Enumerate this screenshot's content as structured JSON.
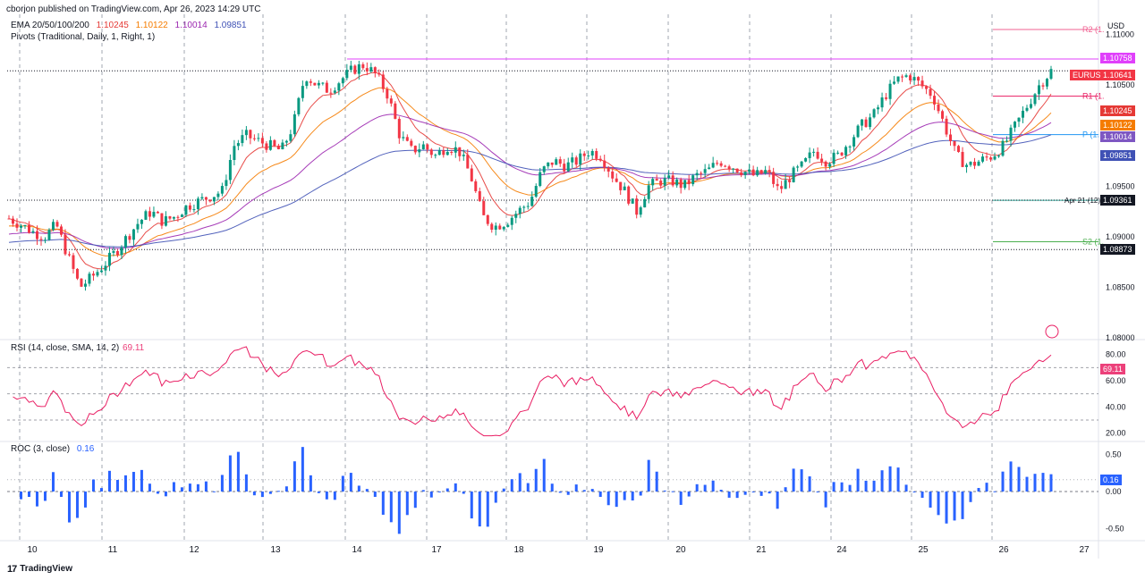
{
  "header": {
    "publisher": "cborjon published on TradingView.com, Apr 26, 2023 14:29 UTC"
  },
  "legend": {
    "ema": {
      "name": "EMA 20/50/100/200",
      "values": [
        "1.10245",
        "1.10122",
        "1.10014",
        "1.09851"
      ],
      "colors": [
        "#e53935",
        "#f57c00",
        "#9c27b0",
        "#3f51b5"
      ]
    },
    "pivots": {
      "name": "Pivots (Traditional, Daily, 1, Right, 1)"
    },
    "rsi": {
      "name": "RSI (14, close, SMA, 14, 2)",
      "value": "69.11",
      "color": "#ec407a"
    },
    "roc": {
      "name": "ROC (3, close)",
      "value": "0.16",
      "color": "#2962ff"
    }
  },
  "axis": {
    "currency": "USD",
    "price_ticks": [
      "1.11000",
      "1.10500",
      "1.10000",
      "1.09500",
      "1.09000",
      "1.08500",
      "1.08000"
    ],
    "price_tick_values": [
      1.11,
      1.105,
      1.1,
      1.095,
      1.09,
      1.085,
      1.08
    ],
    "rsi_ticks": [
      "80.00",
      "60.00",
      "40.00",
      "20.00"
    ],
    "rsi_tick_values": [
      80,
      60,
      40,
      20
    ],
    "roc_ticks": [
      "0.50",
      "0.00",
      "-0.50"
    ],
    "roc_tick_values": [
      0.5,
      0.0,
      -0.5
    ],
    "date_ticks": [
      "10",
      "11",
      "12",
      "13",
      "14",
      "17",
      "18",
      "19",
      "20",
      "21",
      "24",
      "25",
      "26",
      "27"
    ]
  },
  "pivots": {
    "R2": {
      "label": "R2 (1.",
      "price": 1.1105
    },
    "R1": {
      "label": "R1 (1.",
      "price": 1.1039
    },
    "P": {
      "label": "P (1.",
      "price": 1.1001
    },
    "S2": {
      "label": "S2 (1.",
      "price": 1.0895
    },
    "apr21": {
      "label": "Apr 21 (12)",
      "price": 1.0936
    }
  },
  "price_badges": [
    {
      "label": "1.10758",
      "price": 1.10758,
      "color": "#e040fb"
    },
    {
      "label": "EURUSD",
      "price": 1.10641,
      "color": "#f23645"
    },
    {
      "label": "1.10641",
      "price": 1.10641,
      "color": "#f23645"
    },
    {
      "label": "1.10245",
      "price": 1.10245,
      "color": "#e53935"
    },
    {
      "label": "1.10122",
      "price": 1.10122,
      "color": "#f57c00"
    },
    {
      "label": "1.10014",
      "price": 1.10014,
      "color": "#7e57c2"
    },
    {
      "label": "1.09851",
      "price": 1.09851,
      "color": "#3f51b5"
    },
    {
      "label": "1.09361",
      "price": 1.09361,
      "color": "#131722"
    },
    {
      "label": "1.08873",
      "price": 1.08873,
      "color": "#131722"
    }
  ],
  "rsi_badge": {
    "label": "69.11",
    "value": 69.11,
    "color": "#ec407a"
  },
  "roc_badge": {
    "label": "0.16",
    "value": 0.16,
    "color": "#2962ff"
  },
  "chart_data": {
    "type": "candlestick",
    "symbol": "EURUSD",
    "timeframe_note": "Apr 10 – Apr 26, 2023",
    "x_dates": [
      "10",
      "11",
      "12",
      "13",
      "14",
      "17",
      "18",
      "19",
      "20",
      "21",
      "24",
      "25",
      "26",
      "27"
    ],
    "price_ylim": [
      1.08,
      1.112
    ],
    "close_path": [
      1.0918,
      1.0912,
      1.0905,
      1.09,
      1.0912,
      1.088,
      1.085,
      1.086,
      1.0872,
      1.0885,
      1.09,
      1.0915,
      1.0925,
      1.0915,
      1.092,
      1.093,
      1.0935,
      1.094,
      1.0945,
      1.099,
      1.1,
      1.0995,
      1.099,
      1.0985,
      1.101,
      1.106,
      1.105,
      1.1045,
      1.1055,
      1.1065,
      1.107,
      1.106,
      1.104,
      1.1,
      1.0985,
      1.099,
      1.098,
      1.099,
      1.0985,
      1.096,
      1.092,
      1.091,
      1.0915,
      1.0925,
      1.0935,
      1.0965,
      1.0975,
      1.097,
      1.0975,
      1.0985,
      1.098,
      1.096,
      1.0945,
      1.0925,
      1.095,
      1.0955,
      1.0955,
      1.095,
      1.096,
      1.0965,
      1.0975,
      1.097,
      1.0965,
      1.096,
      1.0965,
      1.0945,
      1.096,
      1.097,
      1.0985,
      1.0975,
      1.098,
      1.0995,
      1.101,
      1.102,
      1.104,
      1.1055,
      1.106,
      1.105,
      1.104,
      1.101,
      1.098,
      1.097,
      1.0975,
      1.098,
      1.099,
      1.101,
      1.103,
      1.105,
      1.1064
    ],
    "ema_lines": [
      {
        "name": "EMA 20",
        "value": 1.10245,
        "color": "#e53935"
      },
      {
        "name": "EMA 50",
        "value": 1.10122,
        "color": "#f57c00"
      },
      {
        "name": "EMA 100",
        "value": 1.10014,
        "color": "#9c27b0"
      },
      {
        "name": "EMA 200",
        "value": 1.09851,
        "color": "#3f51b5"
      }
    ],
    "rsi": {
      "ylim": [
        15,
        90
      ],
      "levels": [
        70,
        50,
        30
      ],
      "last": 69.11
    },
    "roc": {
      "ylim": [
        -0.65,
        0.65
      ],
      "last": 0.16
    }
  }
}
